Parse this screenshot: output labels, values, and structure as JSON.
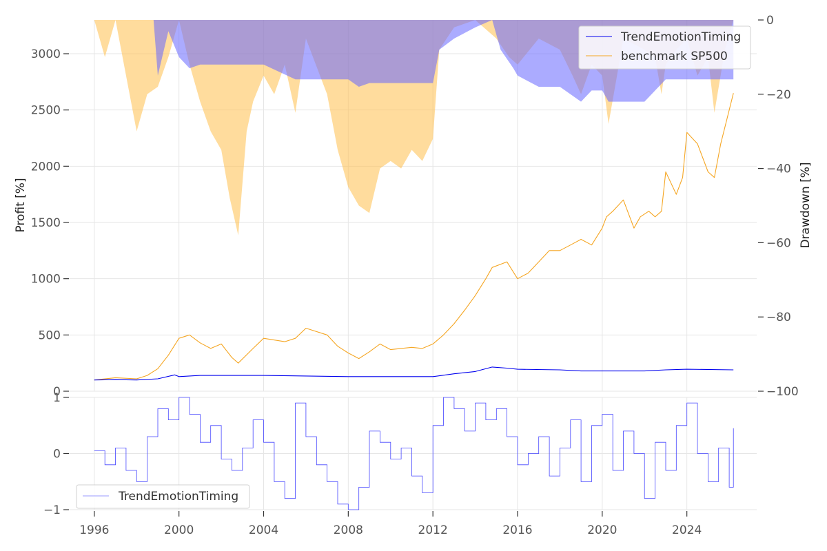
{
  "chart_data": [
    {
      "type": "line",
      "panel": "top",
      "ylabel_left": "Profit [%]",
      "ylabel_right": "Drawdown [%]",
      "x_ticks": [
        "1996",
        "2000",
        "2004",
        "2008",
        "2012",
        "2016",
        "2020",
        "2024"
      ],
      "x_range": [
        1994.8,
        2027.3
      ],
      "y_left_ticks": [
        "0",
        "500",
        "1000",
        "1500",
        "2000",
        "2500",
        "3000"
      ],
      "y_left_range": [
        0,
        3300
      ],
      "y_right_ticks": [
        "0",
        "−20",
        "−40",
        "−60",
        "−80",
        "−100"
      ],
      "y_right_range": [
        -100,
        0
      ],
      "legend": {
        "position": "top-right",
        "entries": [
          "TrendEmotionTiming",
          "benchmark SP500"
        ]
      },
      "series": [
        {
          "name": "TrendEmotionTiming",
          "kind": "profit",
          "color": "#0000ee",
          "x": [
            1996.0,
            1997.0,
            1998.0,
            1999.0,
            1999.8,
            2000.0,
            2001.0,
            2004.0,
            2008.0,
            2012.0,
            2013.0,
            2014.0,
            2014.8,
            2015.5,
            2016.0,
            2018.0,
            2019.0,
            2022.0,
            2023.0,
            2024.0,
            2026.2
          ],
          "values": [
            100,
            103,
            100,
            110,
            145,
            130,
            140,
            140,
            130,
            130,
            155,
            175,
            215,
            205,
            195,
            190,
            180,
            180,
            190,
            195,
            190
          ]
        },
        {
          "name": "benchmark SP500",
          "kind": "profit",
          "color": "#f5a623",
          "x": [
            1996.0,
            1997.0,
            1998.0,
            1998.5,
            1999.0,
            1999.5,
            2000.0,
            2000.5,
            2001.0,
            2001.5,
            2002.0,
            2002.5,
            2002.8,
            2003.5,
            2004.0,
            2005.0,
            2005.5,
            2006.0,
            2007.0,
            2007.5,
            2008.0,
            2008.5,
            2009.0,
            2009.5,
            2010.0,
            2011.0,
            2011.5,
            2012.0,
            2012.5,
            2013.0,
            2013.5,
            2014.0,
            2014.5,
            2014.8,
            2015.5,
            2016.0,
            2016.5,
            2017.0,
            2017.5,
            2018.0,
            2018.5,
            2019.0,
            2019.5,
            2020.0,
            2020.2,
            2020.5,
            2021.0,
            2021.5,
            2021.8,
            2022.2,
            2022.5,
            2022.8,
            2023.0,
            2023.5,
            2023.8,
            2024.0,
            2024.5,
            2025.0,
            2025.3,
            2025.6,
            2026.0,
            2026.2
          ],
          "values": [
            100,
            120,
            110,
            140,
            200,
            320,
            470,
            500,
            430,
            380,
            420,
            300,
            250,
            380,
            470,
            440,
            470,
            560,
            500,
            400,
            340,
            290,
            350,
            420,
            370,
            390,
            380,
            420,
            500,
            600,
            720,
            850,
            1000,
            1100,
            1150,
            1000,
            1050,
            1150,
            1250,
            1250,
            1300,
            1350,
            1300,
            1450,
            1550,
            1600,
            1700,
            1450,
            1550,
            1600,
            1550,
            1600,
            1950,
            1750,
            1900,
            2300,
            2200,
            1950,
            1900,
            2200,
            2500,
            2650
          ]
        },
        {
          "name": "TrendEmotionTiming drawdown",
          "kind": "drawdown",
          "color": "#6666ff",
          "x": [
            1996.0,
            1998.8,
            1999.0,
            1999.5,
            2000.0,
            2000.5,
            2001.0,
            2004.0,
            2005.5,
            2006.0,
            2008.0,
            2008.5,
            2009.0,
            2012.0,
            2012.3,
            2013.0,
            2014.0,
            2014.8,
            2015.2,
            2015.8,
            2016.0,
            2017.0,
            2018.0,
            2019.0,
            2019.5,
            2020.0,
            2020.3,
            2022.0,
            2022.5,
            2023.0,
            2024.0,
            2025.0,
            2025.5,
            2026.2
          ],
          "values": [
            0,
            0,
            -15,
            -3,
            -10,
            -13,
            -12,
            -12,
            -16,
            -16,
            -16,
            -18,
            -17,
            -17,
            -8,
            -5,
            -2,
            0,
            -8,
            -13,
            -15,
            -18,
            -18,
            -22,
            -19,
            -19,
            -22,
            -22,
            -19,
            -16,
            -16,
            -16,
            -16,
            -16
          ]
        },
        {
          "name": "benchmark SP500 drawdown",
          "kind": "drawdown",
          "color": "#ffc04d",
          "x": [
            1996.0,
            1996.5,
            1997.0,
            1997.5,
            1998.0,
            1998.5,
            1999.0,
            1999.5,
            2000.0,
            2000.5,
            2001.0,
            2001.5,
            2002.0,
            2002.4,
            2002.8,
            2003.2,
            2003.5,
            2004.0,
            2004.5,
            2005.0,
            2005.5,
            2006.0,
            2007.0,
            2007.5,
            2008.0,
            2008.5,
            2009.0,
            2009.5,
            2010.0,
            2010.5,
            2011.0,
            2011.5,
            2012.0,
            2012.3,
            2013.0,
            2014.0,
            2015.0,
            2015.6,
            2016.0,
            2017.0,
            2018.0,
            2018.6,
            2019.0,
            2019.5,
            2020.0,
            2020.3,
            2020.7,
            2021.0,
            2022.0,
            2022.5,
            2022.8,
            2023.0,
            2023.5,
            2024.0,
            2024.5,
            2025.0,
            2025.3,
            2025.8,
            2026.2
          ],
          "values": [
            0,
            -10,
            0,
            -15,
            -30,
            -20,
            -18,
            -10,
            0,
            -12,
            -22,
            -30,
            -35,
            -48,
            -58,
            -30,
            -22,
            -15,
            -20,
            -12,
            -25,
            -5,
            -20,
            -35,
            -45,
            -50,
            -52,
            -40,
            -38,
            -40,
            -35,
            -38,
            -32,
            -8,
            -2,
            0,
            -5,
            -10,
            -12,
            -5,
            -8,
            -15,
            -20,
            -12,
            -15,
            -28,
            -15,
            -5,
            -8,
            -10,
            -20,
            -12,
            -8,
            -5,
            -15,
            -10,
            -25,
            -8,
            0
          ]
        }
      ]
    },
    {
      "type": "line",
      "panel": "bottom",
      "x_ticks": [
        "1996",
        "2000",
        "2004",
        "2008",
        "2012",
        "2016",
        "2020",
        "2024"
      ],
      "x_range": [
        1994.8,
        2027.3
      ],
      "y_ticks": [
        "−1",
        "0",
        "1"
      ],
      "y_range": [
        -1,
        1
      ],
      "legend": {
        "position": "bottom-left",
        "entries": [
          "TrendEmotionTiming"
        ]
      },
      "series": [
        {
          "name": "TrendEmotionTiming",
          "color": "#4444ff",
          "x": [
            1996.0,
            1996.5,
            1997.0,
            1997.5,
            1998.0,
            1998.5,
            1999.0,
            1999.5,
            2000.0,
            2000.5,
            2001.0,
            2001.5,
            2002.0,
            2002.5,
            2003.0,
            2003.5,
            2004.0,
            2004.5,
            2005.0,
            2005.5,
            2006.0,
            2006.5,
            2007.0,
            2007.5,
            2008.0,
            2008.5,
            2009.0,
            2009.5,
            2010.0,
            2010.5,
            2011.0,
            2011.5,
            2012.0,
            2012.5,
            2013.0,
            2013.5,
            2014.0,
            2014.5,
            2015.0,
            2015.5,
            2016.0,
            2016.5,
            2017.0,
            2017.5,
            2018.0,
            2018.5,
            2019.0,
            2019.5,
            2020.0,
            2020.5,
            2021.0,
            2021.5,
            2022.0,
            2022.5,
            2023.0,
            2023.5,
            2024.0,
            2024.5,
            2025.0,
            2025.5,
            2026.0,
            2026.2
          ],
          "values": [
            0.05,
            -0.2,
            0.1,
            -0.3,
            -0.5,
            0.3,
            0.8,
            0.6,
            1.0,
            0.7,
            0.2,
            0.5,
            -0.1,
            -0.3,
            0.1,
            0.6,
            0.2,
            -0.5,
            -0.8,
            0.9,
            0.3,
            -0.2,
            -0.5,
            -0.9,
            -1.0,
            -0.6,
            0.4,
            0.2,
            -0.1,
            0.1,
            -0.4,
            -0.7,
            0.5,
            1.0,
            0.8,
            0.4,
            0.9,
            0.6,
            0.8,
            0.3,
            -0.2,
            0.0,
            0.3,
            -0.4,
            0.1,
            0.6,
            -0.5,
            0.5,
            0.7,
            -0.3,
            0.4,
            0.0,
            -0.8,
            0.2,
            -0.3,
            0.5,
            0.9,
            0.0,
            -0.5,
            0.1,
            -0.6,
            0.45
          ]
        }
      ]
    }
  ]
}
